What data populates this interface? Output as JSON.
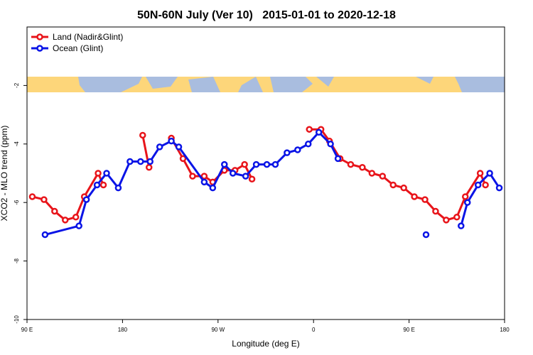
{
  "chart_data": {
    "type": "line",
    "title": "50N-60N July (Ver 10)   2015-01-01 to 2020-12-18",
    "xlabel": "Longitude (deg E)",
    "ylabel": "XCO2 - MLO trend (ppm)",
    "xlim": [
      90,
      540
    ],
    "xticks": [
      {
        "value": 90,
        "label": "90 E"
      },
      {
        "value": 180,
        "label": "180"
      },
      {
        "value": 270,
        "label": "90 W"
      },
      {
        "value": 360,
        "label": "0"
      },
      {
        "value": 450,
        "label": "90 E"
      },
      {
        "value": 540,
        "label": "180"
      }
    ],
    "ylim": [
      -10,
      0
    ],
    "yticks": [
      -10,
      -8,
      -6,
      -4,
      -2
    ],
    "legend": "top-left",
    "series": [
      {
        "name": "Land (Nadir&Glint)",
        "color": "#e8141a",
        "x": [
          95,
          106,
          116,
          126,
          136,
          144,
          157,
          162,
          null,
          199,
          205,
          null,
          226,
          237,
          246,
          257,
          265,
          276,
          286,
          295,
          302,
          null,
          356,
          367,
          375,
          385,
          395,
          406,
          415,
          425,
          435,
          445,
          455,
          465,
          475,
          485,
          495,
          503,
          517,
          522
        ],
        "values": [
          -5.8,
          -5.9,
          -6.3,
          -6.6,
          -6.5,
          -5.8,
          -5.0,
          -5.4,
          null,
          -3.7,
          -4.8,
          null,
          -3.8,
          -4.5,
          -5.1,
          -5.1,
          -5.3,
          -4.9,
          -4.9,
          -4.7,
          -5.2,
          null,
          -3.5,
          -3.5,
          -3.9,
          -4.5,
          -4.7,
          -4.8,
          -5.0,
          -5.1,
          -5.4,
          -5.5,
          -5.8,
          -5.9,
          -6.3,
          -6.6,
          -6.5,
          -5.8,
          -5.0,
          -5.4
        ]
      },
      {
        "name": "Ocean (Glint)",
        "color": "#0a14e6",
        "x": [
          107,
          139,
          146,
          156,
          165,
          176,
          187,
          197,
          206,
          215,
          226,
          233,
          257,
          265,
          276,
          284,
          296,
          306,
          316,
          324,
          335,
          345,
          355,
          365,
          376,
          383,
          null,
          466,
          null,
          499,
          505,
          515,
          526,
          535
        ],
        "values": [
          -7.1,
          -6.8,
          -5.9,
          -5.4,
          -5.0,
          -5.5,
          -4.6,
          -4.6,
          -4.6,
          -4.1,
          -3.9,
          -4.1,
          -5.3,
          -5.5,
          -4.7,
          -5.0,
          -5.1,
          -4.7,
          -4.7,
          -4.7,
          -4.3,
          -4.2,
          -4.0,
          -3.6,
          -4.0,
          -4.5,
          null,
          -7.1,
          null,
          -6.8,
          -6.0,
          -5.4,
          -5.0,
          -5.5
        ]
      }
    ]
  }
}
